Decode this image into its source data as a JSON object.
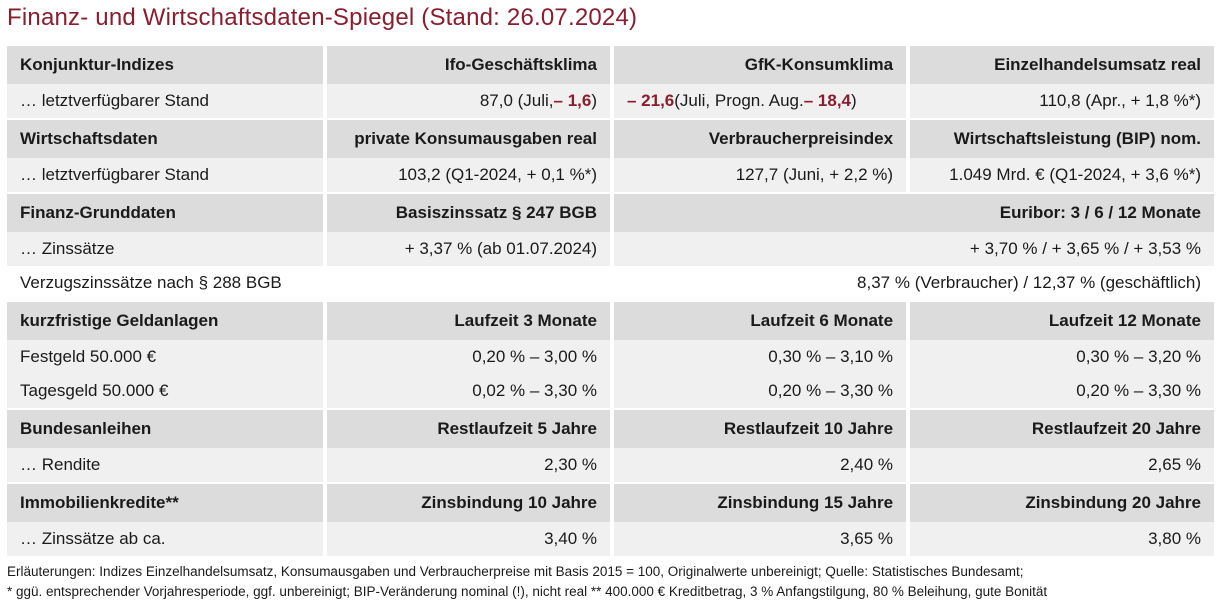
{
  "title": "Finanz- und Wirtschaftsdaten-Spiegel (Stand: 26.07.2024)",
  "sections": {
    "konjunktur": {
      "header": [
        "Konjunktur-Indizes",
        "Ifo-Geschäftsklima",
        "GfK-Konsumklima",
        "Einzelhandelsumsatz real"
      ],
      "row_label": "… letztverfügbarer Stand",
      "ifo_pre": "87,0 (Juli, ",
      "ifo_red": "– 1,6",
      "ifo_post": ")",
      "gfk_red1": "– 21,6",
      "gfk_mid": " (Juli, Progn. Aug. ",
      "gfk_red2": "– 18,4",
      "gfk_post": ")",
      "einzelhandel": "110,8 (Apr., + 1,8 %*)"
    },
    "wirtschaft": {
      "header": [
        "Wirtschaftsdaten",
        "private Konsumausgaben real",
        "Verbraucherpreisindex",
        "Wirtschaftsleistung (BIP) nom."
      ],
      "row_label": "… letztverfügbarer Stand",
      "values": [
        "103,2 (Q1-2024, + 0,1 %*)",
        "127,7 (Juni, + 2,2 %)",
        "1.049 Mrd. € (Q1-2024, + 3,6 %*)"
      ]
    },
    "finanz": {
      "header": [
        "Finanz-Grunddaten",
        "Basiszinssatz § 247 BGB",
        "Euribor: 3 / 6 / 12 Monate"
      ],
      "row_label": "… Zinssätze",
      "values": [
        "+ 3,37 % (ab 01.07.2024)",
        "+ 3,70 % / + 3,65 % / + 3,53 %"
      ],
      "verzug_label": "Verzugszinssätze nach § 288 BGB",
      "verzug_value": "8,37 % (Verbraucher) / 12,37 % (geschäftlich)"
    },
    "geldanlagen": {
      "header": [
        "kurzfristige Geldanlagen",
        "Laufzeit 3 Monate",
        "Laufzeit 6 Monate",
        "Laufzeit 12 Monate"
      ],
      "rows": [
        {
          "label": "Festgeld 50.000 €",
          "values": [
            "0,20 % – 3,00 %",
            "0,30 % – 3,10 %",
            "0,30 % – 3,20 %"
          ]
        },
        {
          "label": "Tagesgeld 50.000 €",
          "values": [
            "0,02 % – 3,30 %",
            "0,20 % – 3,30 %",
            "0,20 % – 3,30 %"
          ]
        }
      ]
    },
    "anleihen": {
      "header": [
        "Bundesanleihen",
        "Restlaufzeit 5 Jahre",
        "Restlaufzeit 10 Jahre",
        "Restlaufzeit 20 Jahre"
      ],
      "row_label": "… Rendite",
      "values": [
        "2,30 %",
        "2,40 %",
        "2,65 %"
      ]
    },
    "immobilien": {
      "header": [
        "Immobilienkredite**",
        "Zinsbindung 10 Jahre",
        "Zinsbindung 15 Jahre",
        "Zinsbindung 20 Jahre"
      ],
      "row_label": "… Zinssätze ab ca.",
      "values": [
        "3,40 %",
        "3,65 %",
        "3,80 %"
      ]
    }
  },
  "footnote1": "Erläuterungen: Indizes Einzelhandelsumsatz, Konsumausgaben und Verbraucherpreise mit Basis 2015 = 100, Originalwerte unbereinigt; Quelle: Statistisches Bundesamt;",
  "footnote2": "* ggü. entsprechender Vorjahresperiode, ggf. unbereinigt; BIP-Veränderung nominal (!), nicht real   ** 400.000 € Kreditbetrag, 3 % Anfangstilgung, 80 % Beleihung, gute Bonität",
  "colors": {
    "accent": "#8a1d2e",
    "header_bg": "#dcdcdc",
    "row_bg": "#f0f0f0"
  }
}
